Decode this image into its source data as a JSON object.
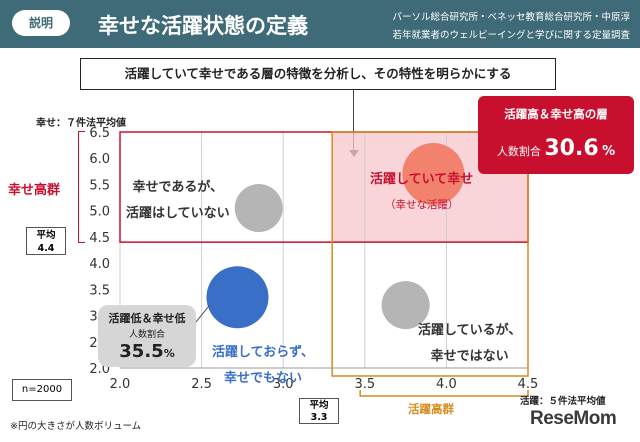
{
  "header": {
    "badge": "説明",
    "title": "幸せな活躍状態の定義",
    "source_line1": "パーソル総合研究所・ベネッセ教育総合研究所・中原淳",
    "source_line2": "若年就業者のウェルビーイングと学びに関する定量調査"
  },
  "banner": "活躍していて幸せである層の特徴を分析し、その特性を明らかにする",
  "callout_high": {
    "title": "活躍高＆幸せ高の層",
    "label": "人数割合",
    "value": "30.6",
    "unit": "%"
  },
  "callout_low": {
    "title": "活躍低＆幸せ低",
    "label": "人数割合",
    "value": "35.5",
    "unit": "%"
  },
  "y_axis_title": "幸せ：７件法平均値",
  "x_axis_title": "活躍：５件法平均値",
  "group_happy": "幸せ高群",
  "group_active": "活躍高群",
  "avg_y": {
    "label": "平均",
    "value": "4.4"
  },
  "avg_x": {
    "label": "平均",
    "value": "3.3"
  },
  "n_label": "n=2000",
  "footnote": "※円の大きさが人数ボリューム",
  "logo": "ReseMom",
  "quadrants": {
    "happy_not_active_l1": "幸せであるが、",
    "happy_not_active_l2": "活躍はしていない",
    "active_happy": "活躍していて幸せ",
    "active_happy_sub": "（幸せな活躍）",
    "not_active_not_happy_l1": "活躍しておらず、",
    "not_active_not_happy_l2": "幸せでもない",
    "active_not_happy_l1": "活躍しているが、",
    "active_not_happy_l2": "幸せではない"
  },
  "colors": {
    "header": "#3f6b78",
    "red": "#c8102e",
    "orange": "#d68a1c",
    "blue": "#3a6fc7",
    "gray": "#b5b5b5",
    "pink_fill": "#f7c6cc"
  },
  "chart_data": {
    "type": "bubble",
    "xlim": [
      2.0,
      4.5
    ],
    "ylim": [
      2.0,
      6.5
    ],
    "x_ticks": [
      2.0,
      2.5,
      3.0,
      3.5,
      4.0,
      4.5
    ],
    "x_tick_labels": [
      "2.0",
      "2.5",
      "3.0",
      "3.5",
      "4.0",
      "4.5"
    ],
    "y_ticks": [
      2.0,
      2.5,
      3.0,
      3.5,
      4.0,
      4.5,
      5.0,
      5.5,
      6.0,
      6.5
    ],
    "y_tick_labels": [
      "2.0",
      "2.5",
      "3.0",
      "3.5",
      "4.0",
      "4.5",
      "5.0",
      "5.5",
      "6.0",
      "6.5"
    ],
    "avg_x": 3.3,
    "avg_y": 4.4,
    "grid": "vertical",
    "points": [
      {
        "x": 2.85,
        "y": 5.05,
        "size": "small",
        "color": "#b5b5b5"
      },
      {
        "x": 3.92,
        "y": 5.7,
        "size": "medium",
        "color": "#f2826e"
      },
      {
        "x": 2.72,
        "y": 3.35,
        "size": "medium",
        "color": "#3a6fc7"
      },
      {
        "x": 3.75,
        "y": 3.2,
        "size": "small",
        "color": "#b5b5b5"
      }
    ]
  }
}
